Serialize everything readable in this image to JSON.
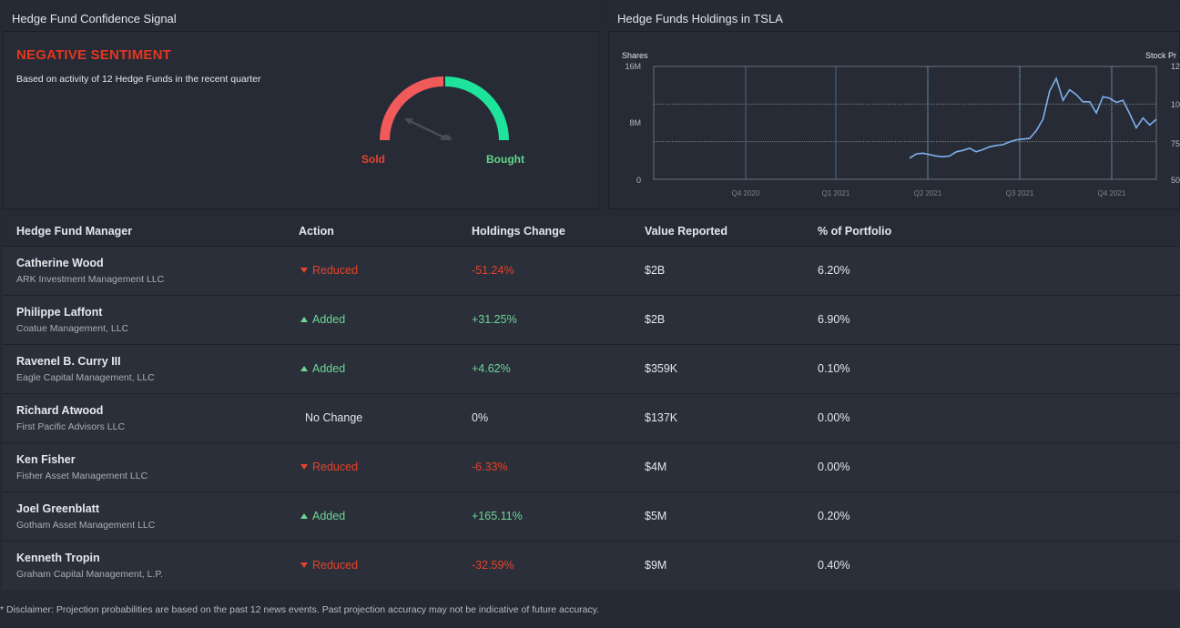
{
  "confidence": {
    "title": "Hedge Fund Confidence Signal",
    "sentiment": "NEGATIVE SENTIMENT",
    "subtitle": "Based on activity of 12 Hedge Funds in the recent quarter",
    "sold_label": "Sold",
    "bought_label": "Bought",
    "colors": {
      "sold": "#f15a5a",
      "bought": "#1ee39a",
      "negative_text": "#e4361f"
    }
  },
  "holdings": {
    "title": "Hedge Funds Holdings in TSLA",
    "chart_data": {
      "type": "line",
      "ylabel": "Shares",
      "y2label": "Stock Pr",
      "yticks": [
        "16M",
        "8M",
        "0"
      ],
      "y2ticks": [
        "12",
        "10",
        "75",
        "50"
      ],
      "xticks": [
        "Q4 2020",
        "Q1 2021",
        "Q2 2021",
        "Q3 2021",
        "Q4 2021"
      ],
      "ylim": [
        0,
        16
      ],
      "series": [
        {
          "color": "#7fb0ee",
          "values": [
            3.0,
            3.6,
            3.7,
            3.5,
            3.3,
            3.2,
            3.3,
            3.9,
            4.1,
            4.4,
            3.9,
            4.2,
            4.6,
            4.8,
            4.9,
            5.3,
            5.6,
            5.7,
            5.8,
            6.9,
            8.5,
            12.5,
            14.3,
            11.2,
            12.7,
            12.0,
            11.0,
            11.0,
            9.4,
            11.7,
            11.5,
            10.9,
            11.2,
            9.3,
            7.3,
            8.7,
            7.7,
            8.5
          ]
        }
      ]
    }
  },
  "table": {
    "headers": [
      "Hedge Fund Manager",
      "Action",
      "Holdings Change",
      "Value Reported",
      "% of Portfolio"
    ],
    "rows": [
      {
        "name": "Catherine Wood",
        "firm": "ARK Investment Management LLC",
        "action": "Reduced",
        "change": "-51.24%",
        "value": "$2B",
        "portfolio": "6.20%"
      },
      {
        "name": "Philippe Laffont",
        "firm": "Coatue Management, LLC",
        "action": "Added",
        "change": "+31.25%",
        "value": "$2B",
        "portfolio": "6.90%"
      },
      {
        "name": "Ravenel B. Curry III",
        "firm": "Eagle Capital Management, LLC",
        "action": "Added",
        "change": "+4.62%",
        "value": "$359K",
        "portfolio": "0.10%"
      },
      {
        "name": "Richard Atwood",
        "firm": "First Pacific Advisors LLC",
        "action": "No Change",
        "change": "0%",
        "value": "$137K",
        "portfolio": "0.00%"
      },
      {
        "name": "Ken Fisher",
        "firm": "Fisher Asset Management LLC",
        "action": "Reduced",
        "change": "-6.33%",
        "value": "$4M",
        "portfolio": "0.00%"
      },
      {
        "name": "Joel Greenblatt",
        "firm": "Gotham Asset Management LLC",
        "action": "Added",
        "change": "+165.11%",
        "value": "$5M",
        "portfolio": "0.20%"
      },
      {
        "name": "Kenneth Tropin",
        "firm": "Graham Capital Management, L.P.",
        "action": "Reduced",
        "change": "-32.59%",
        "value": "$9M",
        "portfolio": "0.40%"
      }
    ]
  },
  "disclaimer": "* Disclaimer: Projection probabilities are based on the past 12 news events. Past projection accuracy may not be indicative of future accuracy."
}
